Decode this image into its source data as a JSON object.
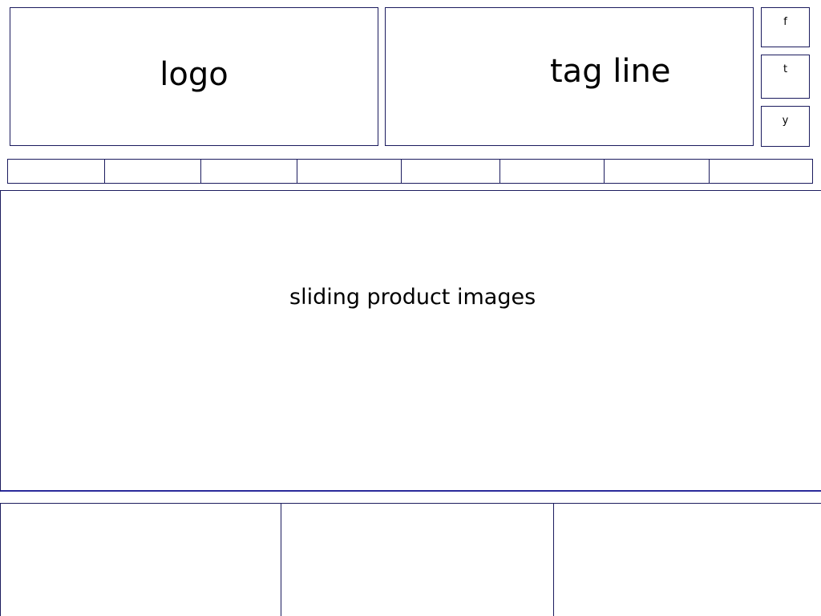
{
  "header": {
    "logo_label": "logo",
    "tagline_label": "tag line"
  },
  "social": {
    "facebook_label": "f",
    "twitter_label": "t",
    "youtube_label": "y"
  },
  "nav": {
    "item_count": 8
  },
  "slider": {
    "label": "sliding product images"
  },
  "panels": {
    "count": 3
  },
  "colors": {
    "border": "#1b1b5e",
    "slider_bottom": "#2a2a9a",
    "background": "#ffffff",
    "text": "#000000"
  }
}
